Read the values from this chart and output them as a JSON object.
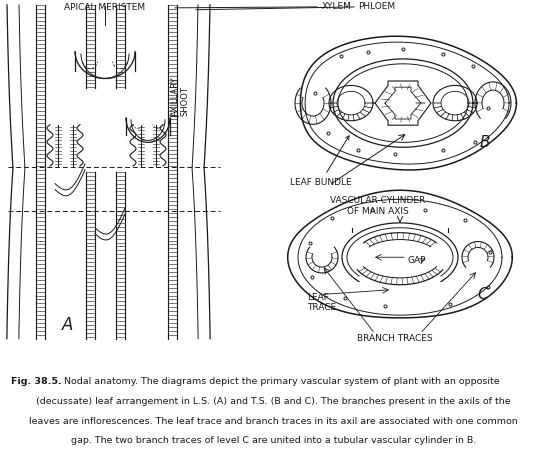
{
  "fig_caption_bold": "Fig. 38.5.",
  "fig_caption_rest": " Nodal anatomy. The diagrams depict the primary vascular system of plant with an opposite\n(decussate) leaf arrangement in L.S. (A) and T.S. (B and C). The branches present in the axils of the\nleaves are inflorescences. The leaf trace and branch traces in its axil are associated with one common\ngap. The two branch traces of level C are united into a tubular vascular cylinder in B.",
  "label_A": "A",
  "label_B": "B",
  "label_C": "C",
  "label_apical_meristem": "APICAL MERISTEM",
  "label_xylem": "XYLEM",
  "label_phloem": "PHLOEM",
  "label_axillary_shoot": "AXILLARY\nSHOOT",
  "label_leaf_bundle": "LEAF BUNDLE",
  "label_vascular_cylinder": "VASCULAR CYLINDER\nOF MAIN AXIS",
  "label_gap": "GAP",
  "label_leaf_trace": "LEAF\nTRACE",
  "label_branch_traces": "BRANCH TRACES",
  "bg_color": "#ffffff",
  "line_color": "#1a1a1a",
  "fontsize_label": 6.5,
  "fontsize_caption": 6.8,
  "fontsize_letter": 11
}
